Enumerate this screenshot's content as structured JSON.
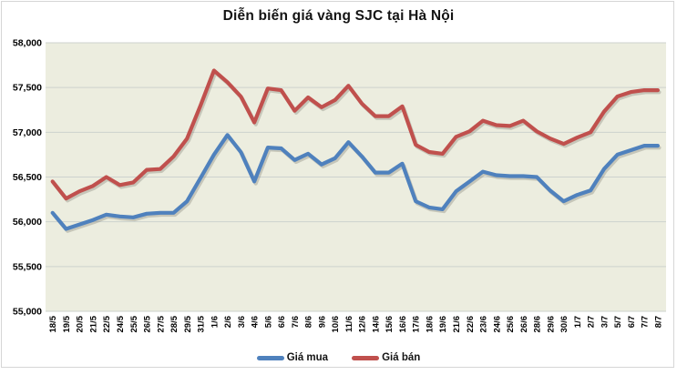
{
  "title": "Diễn biến giá vàng SJC tại Hà Nội",
  "legend": {
    "buy_label": "Giá mua",
    "sell_label": "Giá bán"
  },
  "colors": {
    "buy_line": "#4F81BD",
    "sell_line": "#C0504D",
    "plot_background": "#ECEDDF",
    "gridline": "#CDD2CE",
    "frame_border": "#D6D6D6",
    "title_text": "#141414"
  },
  "chart_data": {
    "type": "line",
    "title": "Diễn biến giá vàng SJC tại Hà Nội",
    "xlabel": "",
    "ylabel": "",
    "ylim": [
      55000,
      58000
    ],
    "grid": true,
    "legend_position": "bottom",
    "categories": [
      "18/5",
      "19/5",
      "20/5",
      "21/5",
      "22/5",
      "24/5",
      "25/5",
      "26/5",
      "27/5",
      "28/5",
      "29/5",
      "31/5",
      "1/6",
      "2/6",
      "3/6",
      "4/6",
      "5/6",
      "6/6",
      "7/6",
      "8/6",
      "9/6",
      "10/6",
      "11/6",
      "12/6",
      "14/6",
      "15/6",
      "16/6",
      "17/6",
      "18/6",
      "19/6",
      "21/6",
      "22/6",
      "23/6",
      "24/6",
      "25/6",
      "26/6",
      "28/6",
      "29/6",
      "30/6",
      "1/7",
      "2/7",
      "3/7",
      "5/7",
      "6/7",
      "7/7",
      "8/7"
    ],
    "series": [
      {
        "name": "Giá mua",
        "color": "#4F81BD",
        "values": [
          56100,
          55920,
          55970,
          56020,
          56080,
          56060,
          56050,
          56090,
          56100,
          56100,
          56230,
          56490,
          56750,
          56970,
          56780,
          56450,
          56830,
          56820,
          56690,
          56760,
          56640,
          56710,
          56890,
          56730,
          56550,
          56550,
          56650,
          56230,
          56160,
          56140,
          56340,
          56450,
          56560,
          56520,
          56510,
          56510,
          56500,
          56350,
          56230,
          56300,
          56350,
          56590,
          56750,
          56800,
          56850,
          56850
        ]
      },
      {
        "name": "Giá bán",
        "color": "#C0504D",
        "values": [
          56450,
          56260,
          56340,
          56400,
          56500,
          56410,
          56440,
          56580,
          56590,
          56730,
          56930,
          57300,
          57690,
          57560,
          57400,
          57110,
          57490,
          57470,
          57240,
          57390,
          57280,
          57360,
          57520,
          57320,
          57180,
          57180,
          57290,
          56860,
          56780,
          56760,
          56950,
          57010,
          57130,
          57080,
          57070,
          57130,
          57010,
          56930,
          56870,
          56940,
          57000,
          57230,
          57400,
          57450,
          57470,
          57470
        ]
      }
    ],
    "yticks": [
      {
        "value": 58000,
        "label": "58,000"
      },
      {
        "value": 57500,
        "label": "57,500"
      },
      {
        "value": 57000,
        "label": "57,000"
      },
      {
        "value": 56500,
        "label": "56,500"
      },
      {
        "value": 56000,
        "label": "56,000"
      },
      {
        "value": 55500,
        "label": "55,500"
      },
      {
        "value": 55000,
        "label": "55,000"
      }
    ]
  }
}
